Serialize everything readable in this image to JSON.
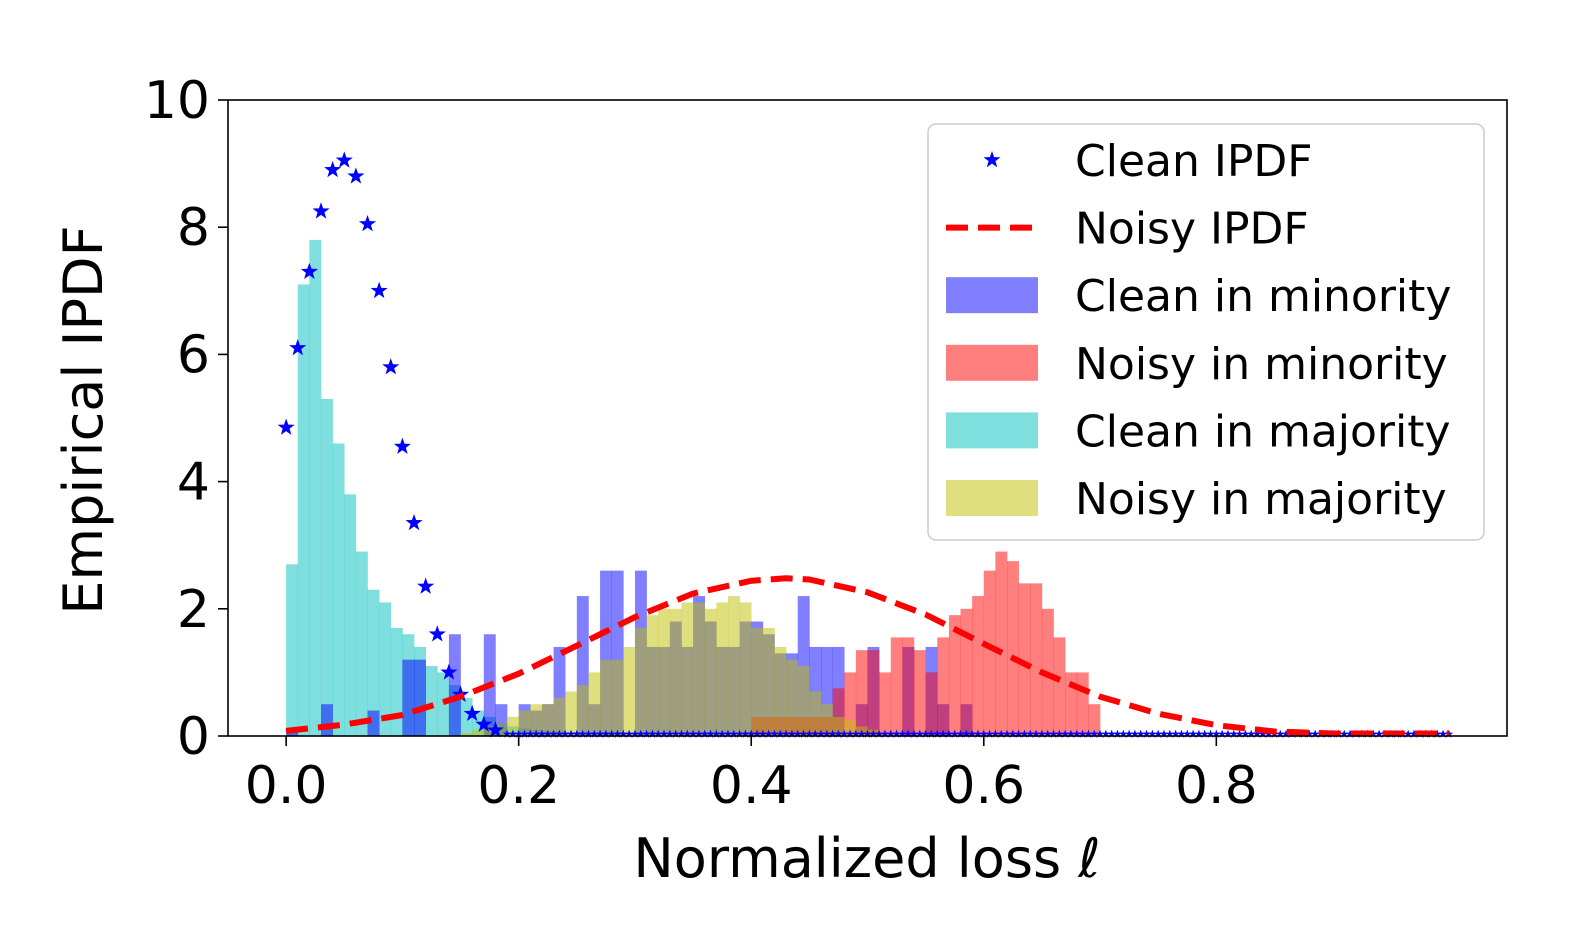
{
  "chart_data": {
    "type": "histogram",
    "xlabel": "Normalized loss ℓ",
    "ylabel": "Empirical IPDF",
    "xlim": [
      -0.05,
      1.05
    ],
    "ylim": [
      0,
      10
    ],
    "xticks": [
      0.0,
      0.2,
      0.4,
      0.6,
      0.8
    ],
    "xtick_labels": [
      "0.0",
      "0.2",
      "0.4",
      "0.6",
      "0.8"
    ],
    "yticks": [
      0,
      2,
      4,
      6,
      8,
      10
    ],
    "ytick_labels": [
      "0",
      "2",
      "4",
      "6",
      "8",
      "10"
    ],
    "grid": false,
    "legend_position": "top-right",
    "bin_width": 0.01,
    "colors": {
      "clean_ipdf": "#0000ff",
      "noisy_ipdf": "#ff0000",
      "clean_minority": "#0000ff",
      "noisy_minority": "#ff0000",
      "clean_majority": "#00bfbf",
      "noisy_majority": "#bfbf00"
    },
    "histograms": [
      {
        "name": "Clean in majority",
        "color_key": "clean_majority",
        "opacity": 0.5,
        "bin_starts": [
          0.0,
          0.01,
          0.02,
          0.03,
          0.04,
          0.05,
          0.06,
          0.07,
          0.08,
          0.09,
          0.1,
          0.11,
          0.12,
          0.13,
          0.14,
          0.15,
          0.16,
          0.17,
          0.18,
          0.19,
          0.2,
          0.21,
          0.22,
          0.23,
          0.24,
          0.25,
          0.26,
          0.27,
          0.28,
          0.29,
          0.3
        ],
        "values": [
          2.7,
          7.1,
          7.8,
          5.3,
          4.6,
          3.8,
          2.9,
          2.3,
          2.1,
          1.7,
          1.6,
          1.4,
          1.1,
          1.0,
          0.8,
          0.6,
          0.4,
          0.3,
          0.2,
          0.15,
          0.12,
          0.1,
          0.08,
          0.08,
          0.06,
          0.06,
          0.05,
          0.05,
          0.04,
          0.04,
          0.03
        ]
      },
      {
        "name": "Clean in minority",
        "color_key": "clean_minority",
        "opacity": 0.5,
        "bin_starts": [
          0.0,
          0.01,
          0.02,
          0.03,
          0.04,
          0.05,
          0.06,
          0.07,
          0.08,
          0.09,
          0.1,
          0.11,
          0.12,
          0.13,
          0.14,
          0.15,
          0.16,
          0.17,
          0.18,
          0.19,
          0.2,
          0.21,
          0.22,
          0.23,
          0.24,
          0.25,
          0.26,
          0.27,
          0.28,
          0.29,
          0.3,
          0.31,
          0.32,
          0.33,
          0.34,
          0.35,
          0.36,
          0.37,
          0.38,
          0.39,
          0.4,
          0.41,
          0.42,
          0.43,
          0.44,
          0.45,
          0.46,
          0.47,
          0.48,
          0.49,
          0.5,
          0.51,
          0.52,
          0.53,
          0.54,
          0.55,
          0.56,
          0.57,
          0.58,
          0.59
        ],
        "values": [
          0.1,
          0,
          0,
          0.5,
          0,
          0,
          0,
          0.4,
          0,
          0,
          1.2,
          1.2,
          0,
          0,
          1.6,
          0,
          0,
          1.6,
          0.5,
          0,
          0.5,
          0.4,
          0.5,
          1.4,
          0,
          2.2,
          0.5,
          2.6,
          2.6,
          0,
          2.6,
          1.4,
          1.4,
          1.8,
          1.4,
          2.2,
          1.8,
          1.4,
          1.4,
          1.8,
          1.8,
          1.6,
          1.3,
          1.3,
          2.2,
          1.4,
          1.4,
          1.4,
          0,
          0.5,
          1.4,
          0,
          0,
          1.4,
          0,
          1.4,
          0.5,
          0,
          0.5,
          0
        ]
      },
      {
        "name": "Noisy in minority",
        "color_key": "noisy_minority",
        "opacity": 0.5,
        "bin_starts": [
          0.4,
          0.41,
          0.42,
          0.43,
          0.44,
          0.45,
          0.46,
          0.47,
          0.48,
          0.49,
          0.5,
          0.51,
          0.52,
          0.53,
          0.54,
          0.55,
          0.56,
          0.57,
          0.58,
          0.59,
          0.6,
          0.61,
          0.62,
          0.63,
          0.64,
          0.65,
          0.66,
          0.67,
          0.68,
          0.69
        ],
        "values": [
          0.3,
          0.3,
          0.3,
          0.3,
          0.3,
          0.3,
          0.3,
          0.75,
          1.0,
          1.35,
          1.35,
          1.0,
          1.55,
          1.55,
          1.35,
          1.0,
          1.55,
          1.9,
          2.0,
          2.2,
          2.6,
          2.9,
          2.75,
          2.4,
          2.4,
          2.0,
          1.55,
          1.0,
          1.0,
          0.5
        ]
      },
      {
        "name": "Noisy in majority",
        "color_key": "noisy_majority",
        "opacity": 0.5,
        "bin_starts": [
          0.15,
          0.16,
          0.17,
          0.18,
          0.19,
          0.2,
          0.21,
          0.22,
          0.23,
          0.24,
          0.25,
          0.26,
          0.27,
          0.28,
          0.29,
          0.3,
          0.31,
          0.32,
          0.33,
          0.34,
          0.35,
          0.36,
          0.37,
          0.38,
          0.39,
          0.4,
          0.41,
          0.42,
          0.43,
          0.44,
          0.45,
          0.46,
          0.47,
          0.48,
          0.49,
          0.5,
          0.51,
          0.52
        ],
        "values": [
          0.05,
          0.1,
          0.15,
          0.2,
          0.3,
          0.4,
          0.5,
          0.5,
          0.6,
          0.7,
          0.8,
          1.0,
          1.2,
          1.2,
          1.4,
          1.7,
          1.9,
          2.0,
          2.0,
          2.1,
          2.1,
          2.0,
          2.1,
          2.2,
          2.1,
          1.7,
          1.7,
          1.4,
          1.2,
          1.1,
          0.7,
          0.5,
          0.3,
          0.25,
          0.15,
          0.1,
          0.05,
          0.05
        ]
      }
    ],
    "series": [
      {
        "name": "Clean IPDF",
        "type": "markers",
        "marker": "star",
        "color_key": "clean_ipdf",
        "x": [
          0.0,
          0.01,
          0.02,
          0.03,
          0.04,
          0.05,
          0.06,
          0.07,
          0.08,
          0.09,
          0.1,
          0.11,
          0.12,
          0.13,
          0.14,
          0.15,
          0.16,
          0.17,
          0.18
        ],
        "y": [
          4.85,
          6.1,
          7.3,
          8.25,
          8.9,
          9.05,
          8.8,
          8.05,
          7.0,
          5.8,
          4.55,
          3.35,
          2.35,
          1.6,
          1.0,
          0.65,
          0.35,
          0.18,
          0.09
        ],
        "tail_x_start": 0.19,
        "tail_x_end": 1.0,
        "tail_step": 0.005,
        "tail_y": 0.03
      },
      {
        "name": "Noisy IPDF",
        "type": "line",
        "linestyle": "dashed",
        "color_key": "noisy_ipdf",
        "x": [
          0.0,
          0.05,
          0.1,
          0.15,
          0.2,
          0.25,
          0.3,
          0.35,
          0.4,
          0.43,
          0.45,
          0.5,
          0.55,
          0.6,
          0.65,
          0.7,
          0.75,
          0.8,
          0.85,
          0.9,
          0.95,
          1.0
        ],
        "y": [
          0.08,
          0.18,
          0.33,
          0.62,
          0.98,
          1.42,
          1.87,
          2.24,
          2.44,
          2.48,
          2.46,
          2.26,
          1.91,
          1.45,
          1.0,
          0.62,
          0.35,
          0.17,
          0.07,
          0.04,
          0.04,
          0.04
        ]
      }
    ],
    "legend": [
      "Clean IPDF",
      "Noisy IPDF",
      "Clean in minority",
      "Noisy in minority",
      "Clean in majority",
      "Noisy in majority"
    ]
  }
}
